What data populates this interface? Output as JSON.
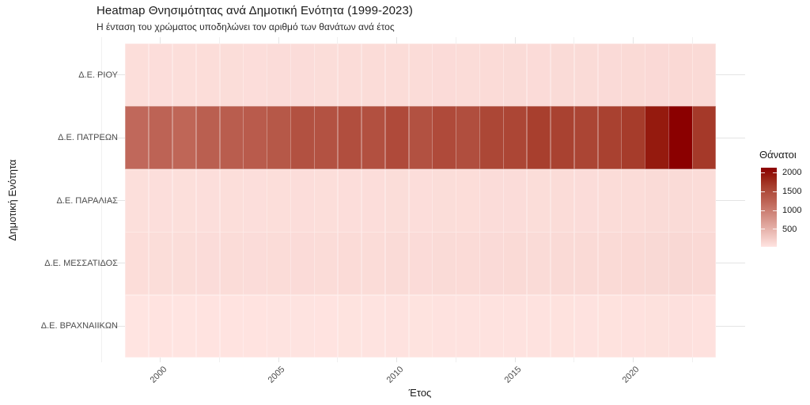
{
  "header": {
    "title": "Heatmap Θνησιμότητας ανά Δημοτική Ενότητα (1999-2023)",
    "subtitle": "Η ένταση του χρώματος υποδηλώνει τον αριθμό των θανάτων ανά έτος"
  },
  "chart_data": {
    "type": "heatmap",
    "title": "Heatmap Θνησιμότητας ανά Δημοτική Ενότητα (1999-2023)",
    "subtitle": "Η ένταση του χρώματος υποδηλώνει τον αριθμό των θανάτων ανά έτος",
    "xlabel": "Έτος",
    "ylabel": "Δημοτική Ενότητα",
    "x": [
      1999,
      2000,
      2001,
      2002,
      2003,
      2004,
      2005,
      2006,
      2007,
      2008,
      2009,
      2010,
      2011,
      2012,
      2013,
      2014,
      2015,
      2016,
      2017,
      2018,
      2019,
      2020,
      2021,
      2022,
      2023
    ],
    "x_ticks": [
      2000,
      2005,
      2010,
      2015,
      2020
    ],
    "x_minor_ticks": [
      1997.5,
      2002.5,
      2007.5,
      2012.5,
      2017.5,
      2022.5
    ],
    "categories": [
      "Δ.Ε. ΡΙΟΥ",
      "Δ.Ε. ΠΑΤΡΕΩΝ",
      "Δ.Ε. ΠΑΡΑΛΙΑΣ",
      "Δ.Ε. ΜΕΣΣΑΤΙΔΟΣ",
      "Δ.Ε. ΒΡΑΧΝΑΙΙΚΩΝ"
    ],
    "series": [
      {
        "name": "Δ.Ε. ΡΙΟΥ",
        "values": [
          98,
          102,
          99,
          105,
          108,
          104,
          110,
          112,
          109,
          115,
          113,
          118,
          116,
          120,
          117,
          122,
          125,
          121,
          127,
          124,
          129,
          133,
          138,
          142,
          131
        ]
      },
      {
        "name": "Δ.Ε. ΠΑΤΡΕΩΝ",
        "values": [
          1185,
          1240,
          1215,
          1290,
          1310,
          1325,
          1365,
          1440,
          1425,
          1465,
          1445,
          1505,
          1435,
          1505,
          1470,
          1545,
          1555,
          1630,
          1600,
          1565,
          1610,
          1660,
          1925,
          2130,
          1680
        ]
      },
      {
        "name": "Δ.Ε. ΠΑΡΑΛΙΑΣ",
        "values": [
          88,
          92,
          90,
          95,
          97,
          93,
          99,
          102,
          100,
          104,
          101,
          106,
          103,
          108,
          105,
          110,
          112,
          108,
          114,
          111,
          116,
          119,
          124,
          128,
          118
        ]
      },
      {
        "name": "Δ.Ε. ΜΕΣΣΑΤΙΔΟΣ",
        "values": [
          105,
          109,
          106,
          112,
          115,
          111,
          117,
          120,
          116,
          122,
          119,
          125,
          121,
          127,
          123,
          129,
          132,
          128,
          135,
          131,
          137,
          141,
          147,
          152,
          140
        ]
      },
      {
        "name": "Δ.Ε. ΒΡΑΧΝΑΙΙΚΩΝ",
        "values": [
          42,
          45,
          43,
          47,
          48,
          46,
          50,
          52,
          49,
          53,
          51,
          55,
          53,
          57,
          54,
          58,
          60,
          57,
          62,
          59,
          63,
          66,
          70,
          73,
          65
        ]
      }
    ],
    "legend": {
      "title": "Θάνατοι",
      "ticks": [
        2000,
        1500,
        1000,
        500
      ],
      "domain": [
        40,
        2130
      ],
      "position": "right"
    },
    "color_scale": {
      "low": "#ffe4e1",
      "high": "#8b0000",
      "stops": [
        {
          "t": 0.0,
          "c": "#ffe4e1"
        },
        {
          "t": 0.25,
          "c": "#e3aca4"
        },
        {
          "t": 0.55,
          "c": "#c0685a"
        },
        {
          "t": 0.775,
          "c": "#a63c2b"
        },
        {
          "t": 0.9,
          "c": "#951a0e"
        },
        {
          "t": 1.0,
          "c": "#8b0000"
        }
      ]
    },
    "grid": {
      "major_color": "#e4e4e4",
      "minor_color": "#f0f0f0"
    },
    "axis_text_color": "#4d4d4d",
    "title_text_color": "#1a1a1a",
    "background": "#ffffff"
  }
}
